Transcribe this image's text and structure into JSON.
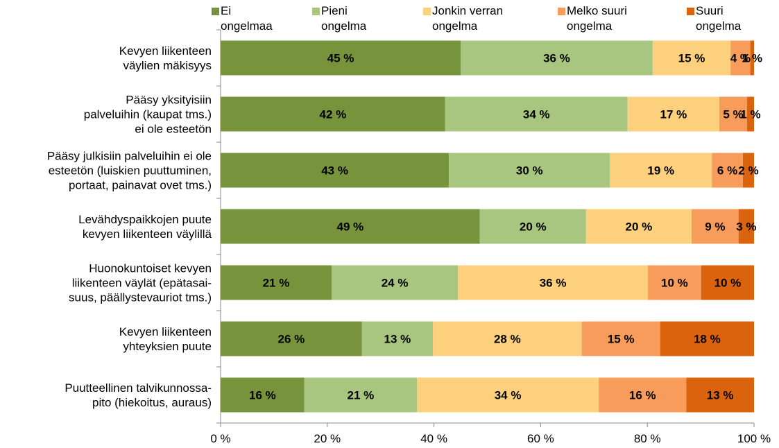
{
  "chart_data": {
    "type": "stacked-bar-horizontal",
    "categories": [
      "Kevyen liikenteen\nväylien mäkisyys",
      "Pääsy yksityisiin\npalveluihin (kaupat tms.)\nei ole esteetön",
      "Pääsy julkisiin palveluihin ei ole\nesteetön (luiskien puuttuminen,\nportaat, painavat ovet tms.)",
      "Levähdyspaikkojen puute\nkevyen liikenteen väylillä",
      "Huonokuntoiset kevyen\nliikenteen väylät (epätasai-\nsuus, päällystevauriot tms.)",
      "Kevyen liikenteen\nyhteyksien puute",
      "Puutteellinen talvikunnossa-\npito (hiekoitus, auraus)"
    ],
    "series": [
      {
        "name": "Ei\nongelmaa",
        "color": "#77933c",
        "values": [
          45.0,
          42.1,
          42.8,
          48.6,
          20.8,
          26.5,
          15.7
        ],
        "value_labels": [
          "45 %",
          "42 %",
          "43 %",
          "49 %",
          "21 %",
          "26 %",
          "16 %"
        ]
      },
      {
        "name": "Pieni\nongelma",
        "color": "#a8c67f",
        "values": [
          36.0,
          34.2,
          30.2,
          19.9,
          23.7,
          13.3,
          21.1
        ],
        "value_labels": [
          "36 %",
          "34 %",
          "30 %",
          "20 %",
          "24 %",
          "13 %",
          "21 %"
        ]
      },
      {
        "name": "Jonkin verran\nongelma",
        "color": "#fcd07d",
        "values": [
          14.6,
          17.2,
          19.1,
          19.8,
          35.6,
          27.9,
          34.1
        ],
        "value_labels": [
          "15 %",
          "17 %",
          "19 %",
          "20 %",
          "36 %",
          "28 %",
          "34 %"
        ]
      },
      {
        "name": "Melko suuri\nongelma",
        "color": "#f79c5b",
        "values": [
          3.7,
          5.2,
          5.8,
          8.8,
          10.0,
          14.7,
          16.4
        ],
        "value_labels": [
          "4 %",
          "5 %",
          "6 %",
          "9 %",
          "10 %",
          "15 %",
          "16 %"
        ]
      },
      {
        "name": "Suuri\nongelma",
        "color": "#db630e",
        "values": [
          0.7,
          1.3,
          2.1,
          2.9,
          9.9,
          17.6,
          12.7
        ],
        "value_labels": [
          "1 %",
          "1 %",
          "2 %",
          "3 %",
          "10 %",
          "18 %",
          "13 %"
        ]
      }
    ],
    "xlim": [
      0,
      100
    ],
    "xticks": [
      {
        "value": 0,
        "label": "0 %"
      },
      {
        "value": 20,
        "label": "20 %"
      },
      {
        "value": 40,
        "label": "40 %"
      },
      {
        "value": 60,
        "label": "60 %"
      },
      {
        "value": 80,
        "label": "80 %"
      },
      {
        "value": 100,
        "label": "100 %"
      }
    ],
    "grid": false,
    "legend": "top"
  }
}
